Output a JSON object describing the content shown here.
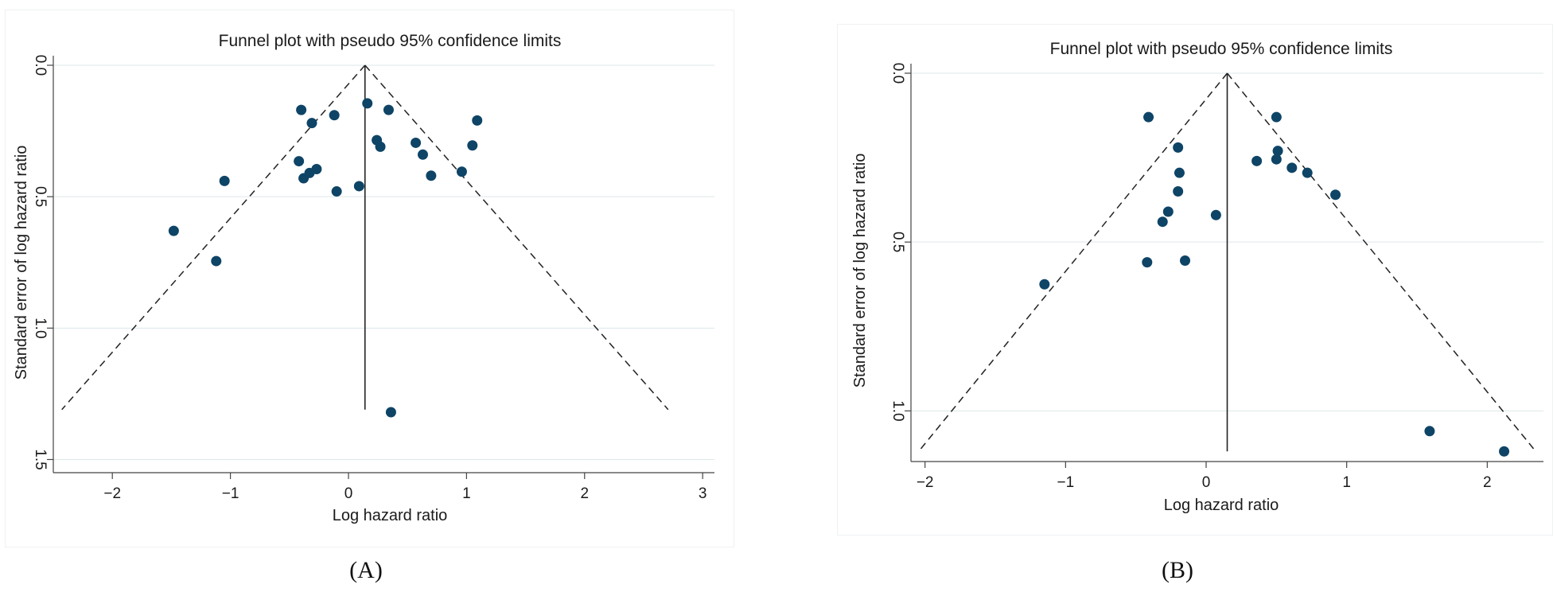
{
  "chart_data": [
    {
      "type": "scatter",
      "panel_label": "(A)",
      "title": "Funnel plot with pseudo 95% confidence limits",
      "xlabel": "Log hazard ratio",
      "ylabel": "Standard error of log hazard ratio",
      "xlim": [
        -2.5,
        3.1
      ],
      "ylim": [
        0.0,
        1.55
      ],
      "y_reversed": true,
      "x_ticks": [
        -2,
        -1,
        0,
        1,
        2,
        3
      ],
      "y_ticks": [
        0.0,
        0.5,
        1.0,
        1.5
      ],
      "y_tick_labels": [
        "0.0",
        "0.5",
        "1.0",
        "1.5"
      ],
      "grid": true,
      "pooled_estimate": 0.14,
      "pseudo_ci_max_se": 1.31,
      "point_color": "#0e4466",
      "points": [
        {
          "x": -1.48,
          "y": 0.63
        },
        {
          "x": -1.12,
          "y": 0.745
        },
        {
          "x": -1.05,
          "y": 0.44
        },
        {
          "x": -0.4,
          "y": 0.17
        },
        {
          "x": -0.31,
          "y": 0.22
        },
        {
          "x": -0.12,
          "y": 0.19
        },
        {
          "x": -0.42,
          "y": 0.365
        },
        {
          "x": -0.38,
          "y": 0.43
        },
        {
          "x": -0.33,
          "y": 0.41
        },
        {
          "x": -0.27,
          "y": 0.395
        },
        {
          "x": -0.1,
          "y": 0.48
        },
        {
          "x": 0.09,
          "y": 0.46
        },
        {
          "x": 0.16,
          "y": 0.145
        },
        {
          "x": 0.34,
          "y": 0.17
        },
        {
          "x": 0.24,
          "y": 0.285
        },
        {
          "x": 0.27,
          "y": 0.31
        },
        {
          "x": 0.57,
          "y": 0.295
        },
        {
          "x": 0.63,
          "y": 0.34
        },
        {
          "x": 0.7,
          "y": 0.42
        },
        {
          "x": 0.96,
          "y": 0.405
        },
        {
          "x": 1.05,
          "y": 0.305
        },
        {
          "x": 1.09,
          "y": 0.21
        },
        {
          "x": 0.36,
          "y": 1.32
        }
      ]
    },
    {
      "type": "scatter",
      "panel_label": "(B)",
      "title": "Funnel plot with pseudo 95% confidence limits",
      "xlabel": "Log hazard ratio",
      "ylabel": "Standard error of log hazard ratio",
      "xlim": [
        -2.1,
        2.4
      ],
      "ylim": [
        0.0,
        1.15
      ],
      "y_reversed": true,
      "x_ticks": [
        -2,
        -1,
        0,
        1,
        2
      ],
      "y_ticks": [
        0.0,
        0.5,
        1.0
      ],
      "y_tick_labels": [
        "0.0",
        "0.5",
        "1.0"
      ],
      "grid": true,
      "pooled_estimate": 0.15,
      "pseudo_ci_max_se": 1.12,
      "point_color": "#0e4466",
      "points": [
        {
          "x": -0.41,
          "y": 0.13
        },
        {
          "x": -0.2,
          "y": 0.22
        },
        {
          "x": -0.19,
          "y": 0.295
        },
        {
          "x": -0.2,
          "y": 0.35
        },
        {
          "x": -0.27,
          "y": 0.41
        },
        {
          "x": -0.31,
          "y": 0.44
        },
        {
          "x": -0.42,
          "y": 0.56
        },
        {
          "x": -0.15,
          "y": 0.555
        },
        {
          "x": -1.15,
          "y": 0.625
        },
        {
          "x": 0.07,
          "y": 0.42
        },
        {
          "x": 0.36,
          "y": 0.26
        },
        {
          "x": 0.5,
          "y": 0.13
        },
        {
          "x": 0.51,
          "y": 0.23
        },
        {
          "x": 0.5,
          "y": 0.255
        },
        {
          "x": 0.61,
          "y": 0.28
        },
        {
          "x": 0.72,
          "y": 0.295
        },
        {
          "x": 0.92,
          "y": 0.36
        },
        {
          "x": 1.59,
          "y": 1.06
        },
        {
          "x": 2.12,
          "y": 1.12
        }
      ]
    }
  ]
}
